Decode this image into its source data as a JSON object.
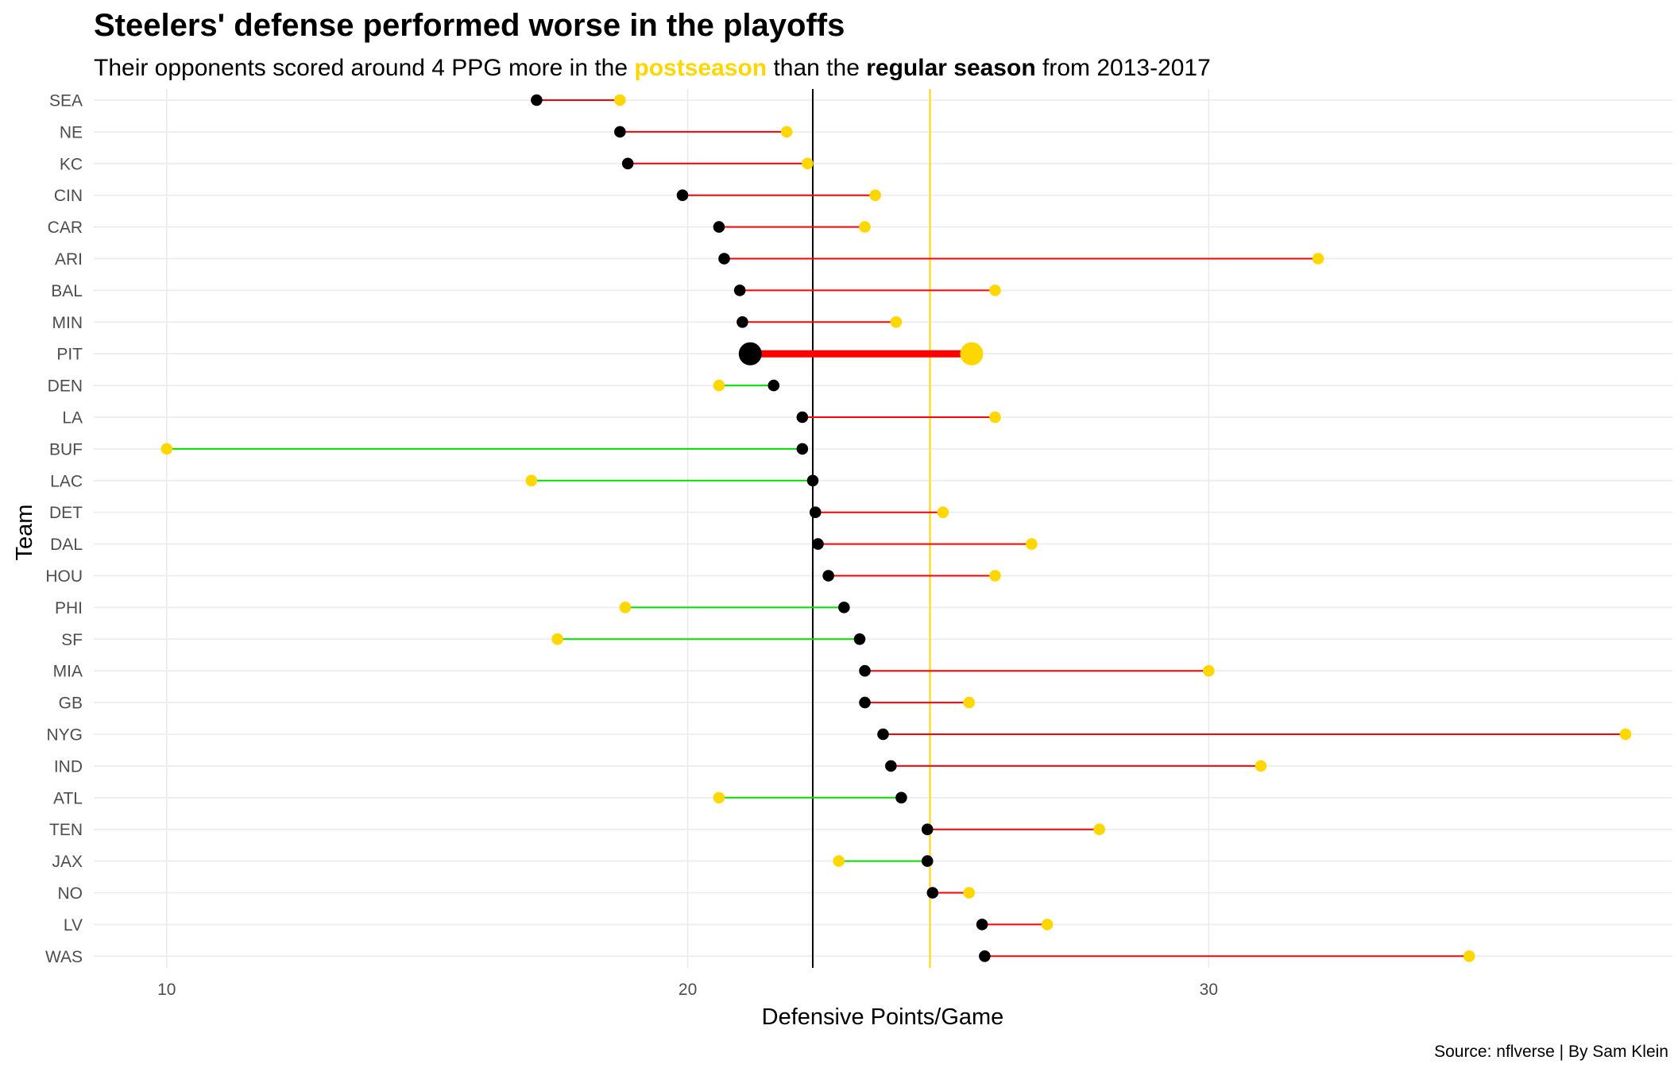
{
  "chart_data": {
    "type": "dumbbell",
    "title": "Steelers' defense performed worse in the playoffs",
    "subtitle": {
      "part1": "Their opponents scored around 4 PPG more in the ",
      "postseason": "postseason",
      "part2": " than the ",
      "regular_season": "regular season",
      "part3": " from 2013-2017"
    },
    "xlabel": "Defensive Points/Game",
    "ylabel": "Team",
    "caption": "Source: nflverse | By Sam Klein",
    "xlim": [
      8.6,
      38.9
    ],
    "x_ticks": [
      10,
      20,
      30
    ],
    "grid": true,
    "legend": "none",
    "reference_lines": [
      {
        "series": "regular season",
        "value": 22.4,
        "color": "#000000"
      },
      {
        "series": "postseason",
        "value": 24.65,
        "color": "#FFD700"
      }
    ],
    "colors": {
      "regular": "#000000",
      "postseason": "#FFD700",
      "worse": "#FF0000",
      "better": "#00E000",
      "highlight": "PIT"
    },
    "series": [
      {
        "name": "regular season",
        "key": "regular"
      },
      {
        "name": "postseason",
        "key": "post"
      }
    ],
    "teams": [
      {
        "team": "SEA",
        "regular": 17.1,
        "post": 18.7
      },
      {
        "team": "NE",
        "regular": 18.7,
        "post": 21.9
      },
      {
        "team": "KC",
        "regular": 18.85,
        "post": 22.3
      },
      {
        "team": "CIN",
        "regular": 19.9,
        "post": 23.6
      },
      {
        "team": "CAR",
        "regular": 20.6,
        "post": 23.4
      },
      {
        "team": "ARI",
        "regular": 20.7,
        "post": 32.1
      },
      {
        "team": "BAL",
        "regular": 21.0,
        "post": 25.9
      },
      {
        "team": "MIN",
        "regular": 21.05,
        "post": 24.0
      },
      {
        "team": "PIT",
        "regular": 21.2,
        "post": 25.45
      },
      {
        "team": "DEN",
        "regular": 21.65,
        "post": 20.6
      },
      {
        "team": "LA",
        "regular": 22.2,
        "post": 25.9
      },
      {
        "team": "BUF",
        "regular": 22.2,
        "post": 10.0
      },
      {
        "team": "LAC",
        "regular": 22.4,
        "post": 17.0
      },
      {
        "team": "DET",
        "regular": 22.45,
        "post": 24.9
      },
      {
        "team": "DAL",
        "regular": 22.5,
        "post": 26.6
      },
      {
        "team": "HOU",
        "regular": 22.7,
        "post": 25.9
      },
      {
        "team": "PHI",
        "regular": 23.0,
        "post": 18.8
      },
      {
        "team": "SF",
        "regular": 23.3,
        "post": 17.5
      },
      {
        "team": "MIA",
        "regular": 23.4,
        "post": 30.0
      },
      {
        "team": "GB",
        "regular": 23.4,
        "post": 25.4
      },
      {
        "team": "NYG",
        "regular": 23.75,
        "post": 38.0
      },
      {
        "team": "IND",
        "regular": 23.9,
        "post": 31.0
      },
      {
        "team": "ATL",
        "regular": 24.1,
        "post": 20.6
      },
      {
        "team": "TEN",
        "regular": 24.6,
        "post": 27.9
      },
      {
        "team": "JAX",
        "regular": 24.6,
        "post": 22.9
      },
      {
        "team": "NO",
        "regular": 24.7,
        "post": 25.4
      },
      {
        "team": "LV",
        "regular": 25.65,
        "post": 26.9
      },
      {
        "team": "WAS",
        "regular": 25.7,
        "post": 35.0
      }
    ]
  }
}
